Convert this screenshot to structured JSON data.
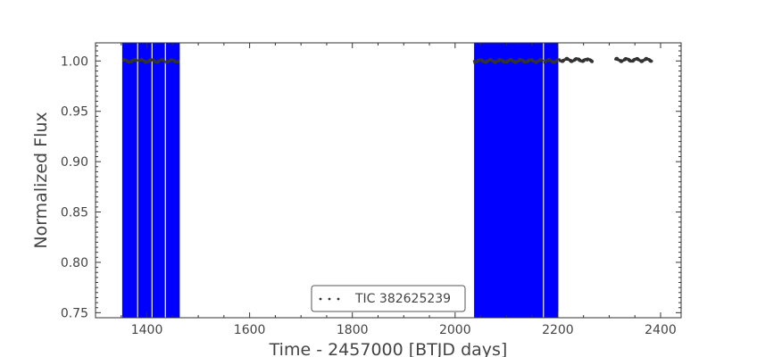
{
  "chart_data": {
    "type": "scatter",
    "title": "",
    "xlabel": "Time - 2457000 [BTJD days]",
    "ylabel": "Normalized Flux",
    "xlim": [
      1300,
      2440
    ],
    "ylim": [
      0.745,
      1.018
    ],
    "xticks": [
      {
        "value": 1400,
        "label": "1400"
      },
      {
        "value": 1600,
        "label": "1600"
      },
      {
        "value": 1800,
        "label": "1800"
      },
      {
        "value": 2000,
        "label": "2000"
      },
      {
        "value": 2200,
        "label": "2200"
      },
      {
        "value": 2400,
        "label": "2400"
      }
    ],
    "yticks": [
      {
        "value": 0.75,
        "label": "0.75"
      },
      {
        "value": 0.8,
        "label": "0.80"
      },
      {
        "value": 0.85,
        "label": "0.85"
      },
      {
        "value": 0.9,
        "label": "0.90"
      },
      {
        "value": 0.95,
        "label": "0.95"
      },
      {
        "value": 1.0,
        "label": "1.00"
      }
    ],
    "grid": false,
    "legend": {
      "placement": "bottom-center",
      "entries": [
        "TIC 382625239"
      ]
    },
    "series": [
      {
        "name": "TIC 382625239",
        "marker": "dot",
        "color": "#333333",
        "segments": [
          {
            "x_start": 1354,
            "x_end": 1381,
            "y": 1.0
          },
          {
            "x_start": 1384,
            "x_end": 1409,
            "y": 1.0
          },
          {
            "x_start": 1411,
            "x_end": 1435,
            "y": 1.0
          },
          {
            "x_start": 1438,
            "x_end": 1462,
            "y": 1.0
          },
          {
            "x_start": 2037,
            "x_end": 2171,
            "y": 1.0
          },
          {
            "x_start": 2174,
            "x_end": 2200,
            "y": 1.0
          },
          {
            "x_start": 2203,
            "x_end": 2256,
            "y": 1.001
          },
          {
            "x_start": 2256,
            "x_end": 2268,
            "y": 1.0005
          },
          {
            "x_start": 2312,
            "x_end": 2384,
            "y": 1.001
          }
        ]
      }
    ],
    "highlight_spans": {
      "color": "#0000ff",
      "y_range": [
        0.745,
        1.018
      ],
      "spans": [
        [
          1352,
          1381
        ],
        [
          1383,
          1409
        ],
        [
          1411,
          1435
        ],
        [
          1437,
          1464
        ],
        [
          2037,
          2171
        ],
        [
          2173,
          2201
        ]
      ]
    }
  }
}
